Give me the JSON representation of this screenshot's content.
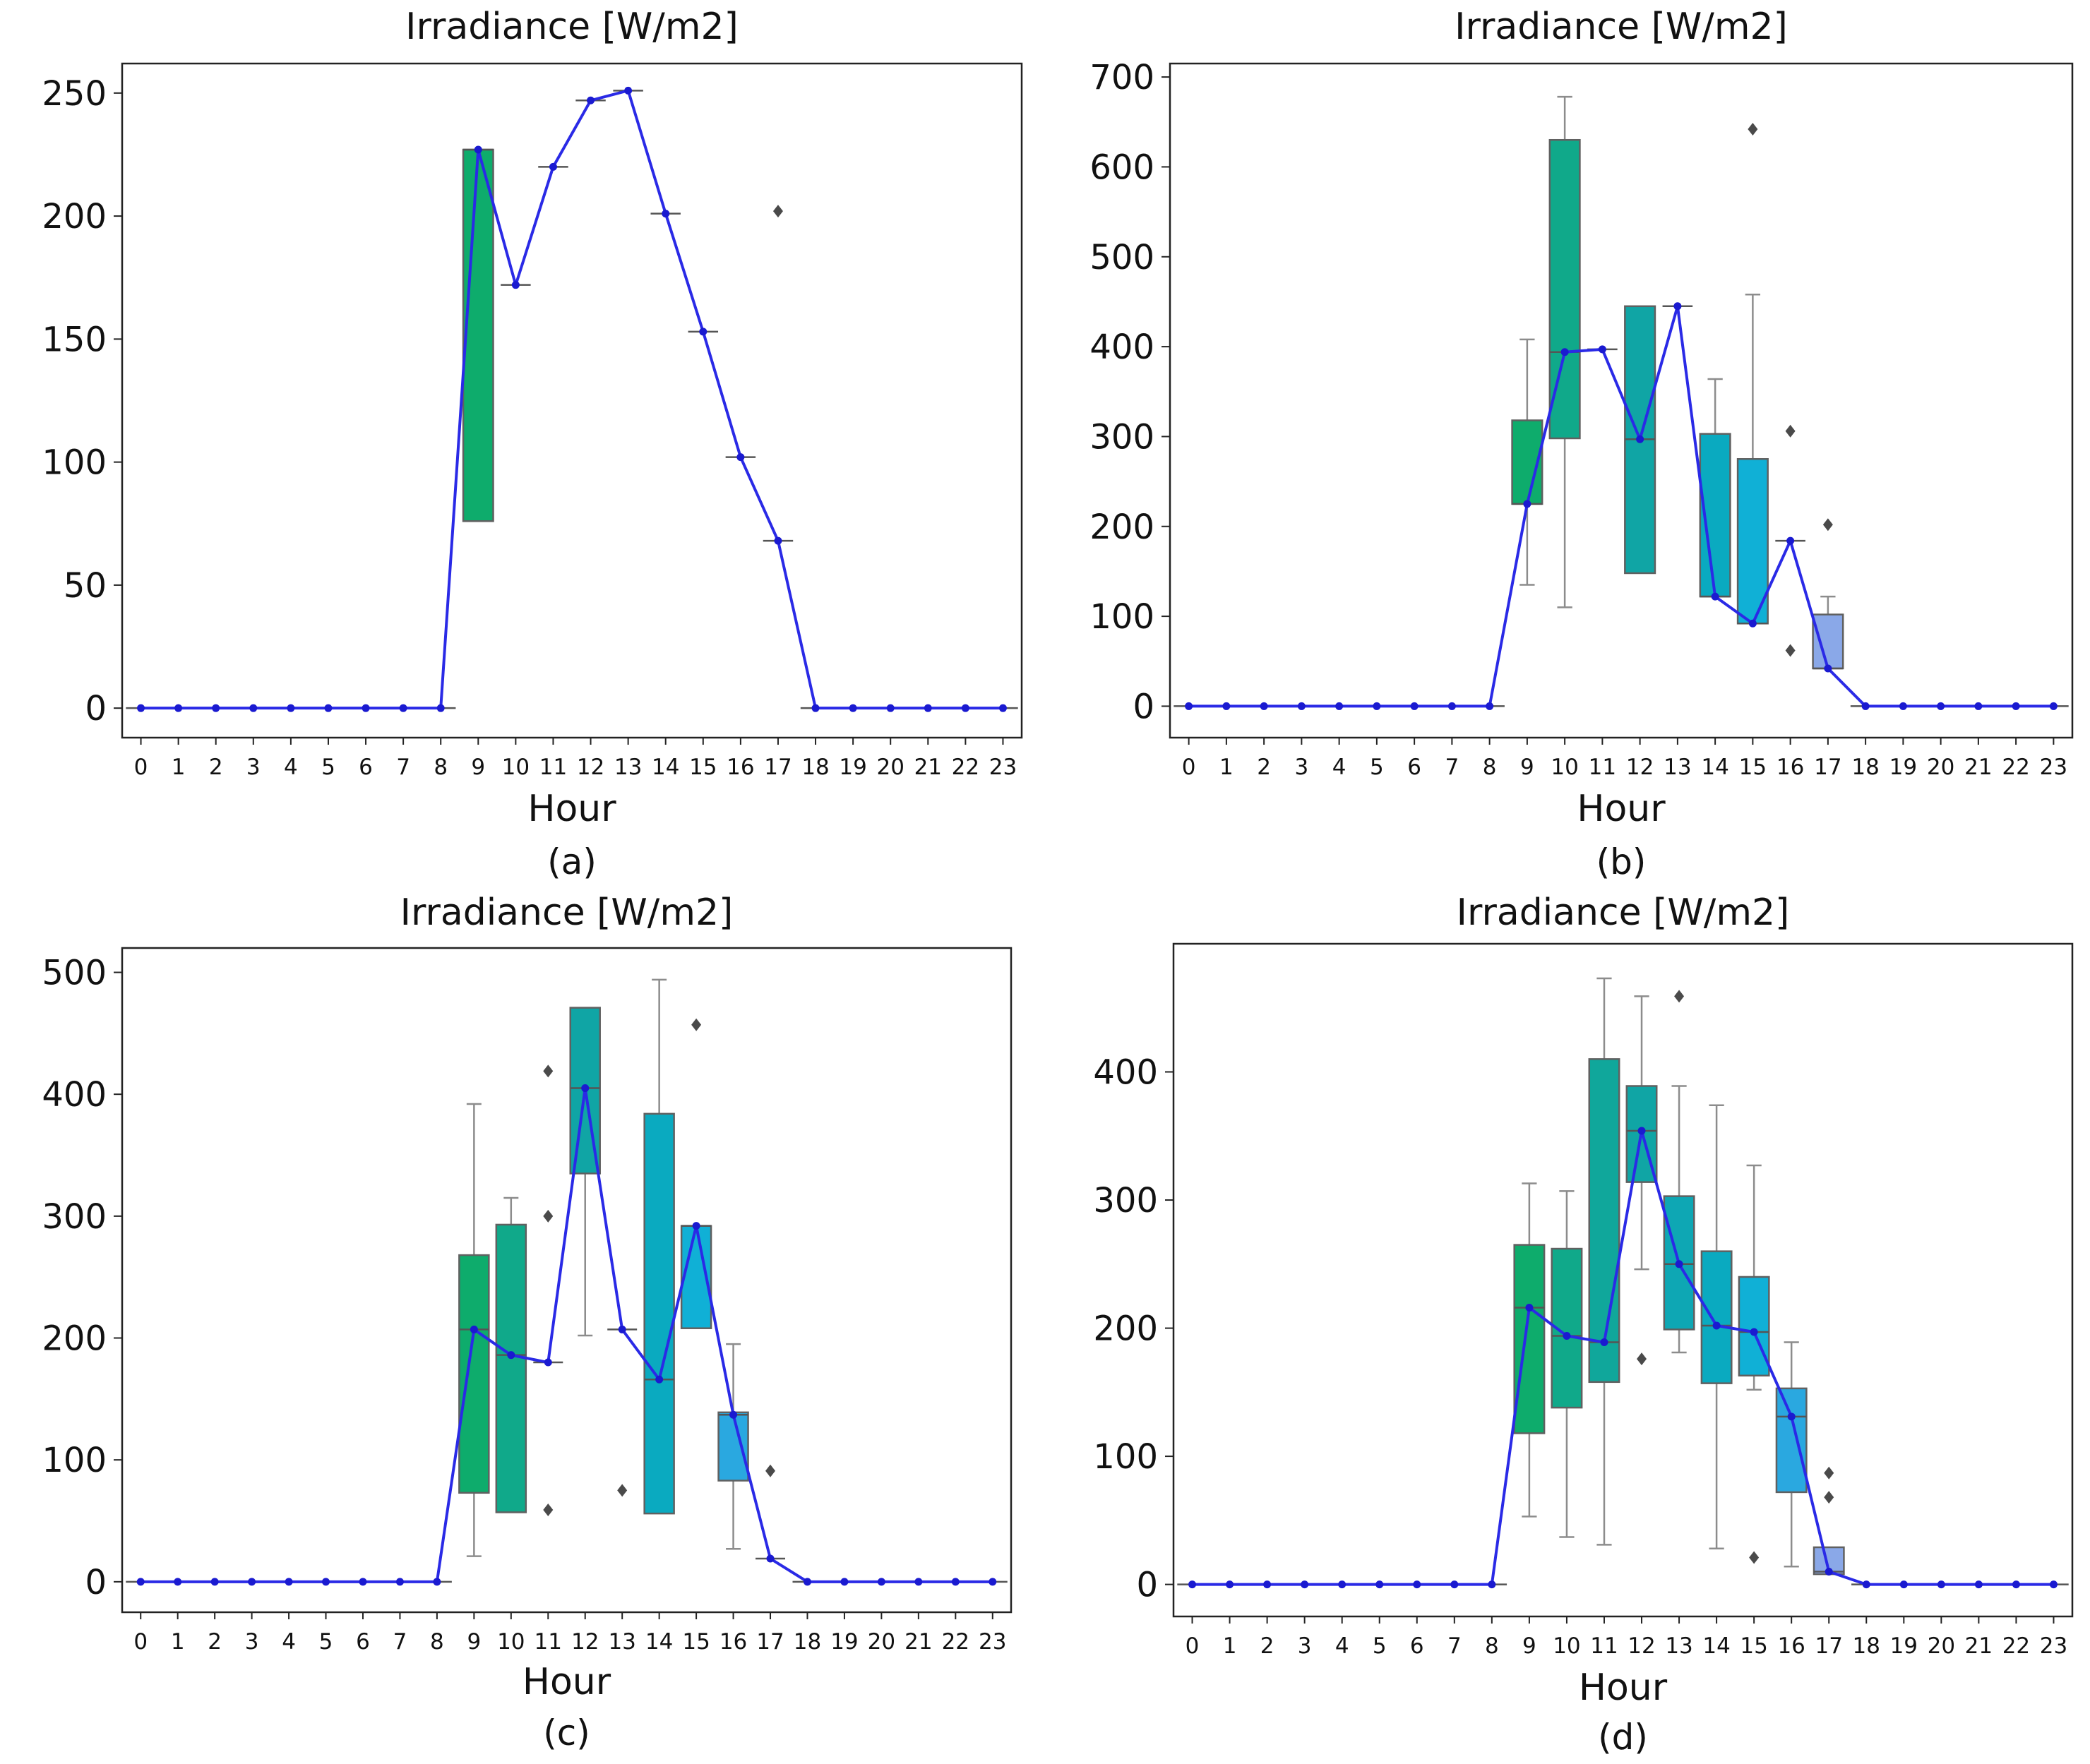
{
  "chart_data": [
    {
      "type": "box",
      "panel_label": "(a)",
      "title": "Irradiance [W/m2]",
      "xlabel": "Hour",
      "ylabel": "",
      "ylim": [
        -12,
        262
      ],
      "yticks": [
        0,
        50,
        100,
        150,
        200,
        250
      ],
      "categories": [
        "0",
        "1",
        "2",
        "3",
        "4",
        "5",
        "6",
        "7",
        "8",
        "9",
        "10",
        "11",
        "12",
        "13",
        "14",
        "15",
        "16",
        "17",
        "18",
        "19",
        "20",
        "21",
        "22",
        "23"
      ],
      "mean_series": [
        0,
        0,
        0,
        0,
        0,
        0,
        0,
        0,
        0,
        227,
        172,
        220,
        247,
        251,
        201,
        153,
        102,
        68,
        0,
        0,
        0,
        0,
        0,
        0
      ],
      "boxes": [
        {
          "hour": 9,
          "q1": 76,
          "median": 227,
          "q3": 227,
          "whislo": 76,
          "whishi": 227,
          "color": "#0eac6c"
        },
        {
          "hour": 10,
          "q1": 172,
          "median": 172,
          "q3": 172,
          "whislo": 172,
          "whishi": 172,
          "color": "#10a98a"
        },
        {
          "hour": 11,
          "q1": 220,
          "median": 220,
          "q3": 220,
          "whislo": 220,
          "whishi": 220,
          "color": "#10a79b"
        },
        {
          "hour": 12,
          "q1": 247,
          "median": 247,
          "q3": 247,
          "whislo": 247,
          "whishi": 247,
          "color": "#10a5a5"
        },
        {
          "hour": 13,
          "q1": 251,
          "median": 251,
          "q3": 251,
          "whislo": 251,
          "whishi": 251,
          "color": "#0ea7b4"
        },
        {
          "hour": 14,
          "q1": 201,
          "median": 201,
          "q3": 201,
          "whislo": 201,
          "whishi": 201,
          "color": "#0aaac0"
        },
        {
          "hour": 15,
          "q1": 153,
          "median": 153,
          "q3": 153,
          "whislo": 153,
          "whishi": 153,
          "color": "#10b0d6"
        },
        {
          "hour": 16,
          "q1": 102,
          "median": 102,
          "q3": 102,
          "whislo": 102,
          "whishi": 102,
          "color": "#2aa8e0"
        },
        {
          "hour": 17,
          "q1": 68,
          "median": 68,
          "q3": 68,
          "whislo": 68,
          "whishi": 68,
          "color": "#8aa8e8"
        }
      ],
      "fliers": [
        {
          "hour": 17,
          "value": 202
        }
      ]
    },
    {
      "type": "box",
      "panel_label": "(b)",
      "title": "Irradiance [W/m2]",
      "xlabel": "Hour",
      "ylabel": "",
      "ylim": [
        -35,
        715
      ],
      "yticks": [
        0,
        100,
        200,
        300,
        400,
        500,
        600,
        700
      ],
      "categories": [
        "0",
        "1",
        "2",
        "3",
        "4",
        "5",
        "6",
        "7",
        "8",
        "9",
        "10",
        "11",
        "12",
        "13",
        "14",
        "15",
        "16",
        "17",
        "18",
        "19",
        "20",
        "21",
        "22",
        "23"
      ],
      "mean_series": [
        0,
        0,
        0,
        0,
        0,
        0,
        0,
        0,
        0,
        225,
        394,
        397,
        297,
        445,
        122,
        92,
        184,
        42,
        0,
        0,
        0,
        0,
        0,
        0
      ],
      "boxes": [
        {
          "hour": 9,
          "q1": 225,
          "median": 225,
          "q3": 318,
          "whislo": 135,
          "whishi": 408,
          "color": "#0eac6c"
        },
        {
          "hour": 10,
          "q1": 298,
          "median": 394,
          "q3": 630,
          "whislo": 110,
          "whishi": 678,
          "color": "#10a98a"
        },
        {
          "hour": 11,
          "q1": 397,
          "median": 397,
          "q3": 397,
          "whislo": 397,
          "whishi": 397,
          "color": "#10a79b"
        },
        {
          "hour": 12,
          "q1": 148,
          "median": 297,
          "q3": 445,
          "whislo": 148,
          "whishi": 445,
          "color": "#10a5a5"
        },
        {
          "hour": 13,
          "q1": 445,
          "median": 445,
          "q3": 445,
          "whislo": 445,
          "whishi": 445,
          "color": "#0ea7b4"
        },
        {
          "hour": 14,
          "q1": 122,
          "median": 122,
          "q3": 303,
          "whislo": 122,
          "whishi": 364,
          "color": "#0aaac0"
        },
        {
          "hour": 15,
          "q1": 92,
          "median": 92,
          "q3": 275,
          "whislo": 92,
          "whishi": 458,
          "color": "#10b0d6"
        },
        {
          "hour": 16,
          "q1": 184,
          "median": 184,
          "q3": 184,
          "whislo": 184,
          "whishi": 184,
          "color": "#2aa8e0"
        },
        {
          "hour": 17,
          "q1": 42,
          "median": 42,
          "q3": 102,
          "whislo": 42,
          "whishi": 122,
          "color": "#8aa8e8"
        }
      ],
      "fliers": [
        {
          "hour": 15,
          "value": 642
        },
        {
          "hour": 16,
          "value": 306
        },
        {
          "hour": 16,
          "value": 62
        },
        {
          "hour": 17,
          "value": 202
        }
      ]
    },
    {
      "type": "box",
      "panel_label": "(c)",
      "title": "Irradiance [W/m2]",
      "xlabel": "Hour",
      "ylabel": "",
      "ylim": [
        -25,
        520
      ],
      "yticks": [
        0,
        100,
        200,
        300,
        400,
        500
      ],
      "categories": [
        "0",
        "1",
        "2",
        "3",
        "4",
        "5",
        "6",
        "7",
        "8",
        "9",
        "10",
        "11",
        "12",
        "13",
        "14",
        "15",
        "16",
        "17",
        "18",
        "19",
        "20",
        "21",
        "22",
        "23"
      ],
      "mean_series": [
        0,
        0,
        0,
        0,
        0,
        0,
        0,
        0,
        0,
        207,
        186,
        180,
        405,
        207,
        166,
        292,
        137,
        19,
        0,
        0,
        0,
        0,
        0,
        0
      ],
      "boxes": [
        {
          "hour": 9,
          "q1": 73,
          "median": 207,
          "q3": 268,
          "whislo": 21,
          "whishi": 392,
          "color": "#0eac6c"
        },
        {
          "hour": 10,
          "q1": 57,
          "median": 186,
          "q3": 293,
          "whislo": 57,
          "whishi": 315,
          "color": "#10a98a"
        },
        {
          "hour": 11,
          "q1": 180,
          "median": 180,
          "q3": 180,
          "whislo": 180,
          "whishi": 180,
          "color": "#10a79b"
        },
        {
          "hour": 12,
          "q1": 335,
          "median": 405,
          "q3": 471,
          "whislo": 202,
          "whishi": 471,
          "color": "#10a5a5"
        },
        {
          "hour": 13,
          "q1": 207,
          "median": 207,
          "q3": 207,
          "whislo": 207,
          "whishi": 207,
          "color": "#0ea7b4"
        },
        {
          "hour": 14,
          "q1": 56,
          "median": 166,
          "q3": 384,
          "whislo": 56,
          "whishi": 494,
          "color": "#0aaac0"
        },
        {
          "hour": 15,
          "q1": 208,
          "median": 292,
          "q3": 292,
          "whislo": 208,
          "whishi": 292,
          "color": "#10b0d6"
        },
        {
          "hour": 16,
          "q1": 83,
          "median": 137,
          "q3": 139,
          "whislo": 27,
          "whishi": 195,
          "color": "#2aa8e0"
        },
        {
          "hour": 17,
          "q1": 19,
          "median": 19,
          "q3": 19,
          "whislo": 19,
          "whishi": 19,
          "color": "#8aa8e8"
        }
      ],
      "fliers": [
        {
          "hour": 11,
          "value": 419
        },
        {
          "hour": 11,
          "value": 300
        },
        {
          "hour": 11,
          "value": 59
        },
        {
          "hour": 13,
          "value": 75
        },
        {
          "hour": 15,
          "value": 457
        },
        {
          "hour": 17,
          "value": 91
        }
      ]
    },
    {
      "type": "box",
      "panel_label": "(d)",
      "title": "Irradiance [W/m2]",
      "xlabel": "Hour",
      "ylabel": "",
      "ylim": [
        -25,
        500
      ],
      "yticks": [
        0,
        100,
        200,
        300,
        400
      ],
      "categories": [
        "0",
        "1",
        "2",
        "3",
        "4",
        "5",
        "6",
        "7",
        "8",
        "9",
        "10",
        "11",
        "12",
        "13",
        "14",
        "15",
        "16",
        "17",
        "18",
        "19",
        "20",
        "21",
        "22",
        "23"
      ],
      "mean_series": [
        0,
        0,
        0,
        0,
        0,
        0,
        0,
        0,
        0,
        216,
        194,
        189,
        354,
        250,
        202,
        197,
        131,
        10,
        0,
        0,
        0,
        0,
        0,
        0
      ],
      "boxes": [
        {
          "hour": 9,
          "q1": 118,
          "median": 216,
          "q3": 265,
          "whislo": 53,
          "whishi": 313,
          "color": "#0eac6c"
        },
        {
          "hour": 10,
          "q1": 138,
          "median": 194,
          "q3": 262,
          "whislo": 37,
          "whishi": 307,
          "color": "#10a98a"
        },
        {
          "hour": 11,
          "q1": 158,
          "median": 189,
          "q3": 410,
          "whislo": 31,
          "whishi": 473,
          "color": "#10a79b"
        },
        {
          "hour": 12,
          "q1": 314,
          "median": 354,
          "q3": 389,
          "whislo": 246,
          "whishi": 459,
          "color": "#10a5a5"
        },
        {
          "hour": 13,
          "q1": 199,
          "median": 250,
          "q3": 303,
          "whislo": 181,
          "whishi": 389,
          "color": "#0ea7b4"
        },
        {
          "hour": 14,
          "q1": 157,
          "median": 202,
          "q3": 260,
          "whislo": 28,
          "whishi": 374,
          "color": "#0aaac0"
        },
        {
          "hour": 15,
          "q1": 163,
          "median": 197,
          "q3": 240,
          "whislo": 152,
          "whishi": 327,
          "color": "#10b0d6"
        },
        {
          "hour": 16,
          "q1": 72,
          "median": 131,
          "q3": 153,
          "whislo": 14,
          "whishi": 189,
          "color": "#2aa8e0"
        },
        {
          "hour": 17,
          "q1": 8,
          "median": 10,
          "q3": 29,
          "whislo": 8,
          "whishi": 29,
          "color": "#8aa8e8"
        }
      ],
      "fliers": [
        {
          "hour": 12,
          "value": 176
        },
        {
          "hour": 13,
          "value": 459
        },
        {
          "hour": 15,
          "value": 21
        },
        {
          "hour": 17,
          "value": 87
        },
        {
          "hour": 17,
          "value": 68
        }
      ]
    }
  ]
}
